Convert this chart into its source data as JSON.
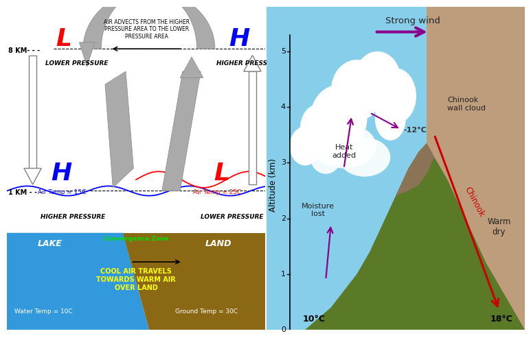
{
  "left_panel": {
    "bg_color": "#ffffff",
    "lake_color": "#3399dd",
    "land_color": "#8B6914",
    "lake_label": "LAKE",
    "land_label": "LAND",
    "convergence_label": "Convergence Zone",
    "water_temp": "Water Temp = 10C",
    "ground_temp": "Ground Temp = 30C",
    "cool_air_text": "COOL AIR TRAVELS\nTOWARDS WARM AIR\nOVER LAND",
    "L_left_label": "L",
    "L_left_sub": "LOWER PRESSURE",
    "H_right_label": "H",
    "H_right_sub": "HIGHER PRESSURE",
    "H_left_label": "H",
    "H_left_sub": "HIGHER PRESSURE",
    "H_left_temp": "Air Temp = 15C",
    "L_right_label": "L",
    "L_right_sub": "LOWER PRESSURE",
    "L_right_temp": "Air Temp = 25C",
    "km8_label": "8 KM- - -",
    "km1_label": "1 KM - - -",
    "advect_text": "AIR ADVECTS FROM THE HIGHER\nPRESSURE AREA TO THE LOWER\nPRESSURE AREA"
  },
  "right_panel": {
    "title": "Strong wind",
    "ylabel": "Altitude (km)",
    "yticks": [
      0,
      1,
      2,
      3,
      4,
      5
    ],
    "temp_bottom_left": "10°C",
    "temp_bottom_right": "18°C",
    "temp_top": "-12°C",
    "label_chinook_cloud": "Chinook\nwall cloud",
    "label_heat_added": "Heat\nadded",
    "label_moisture_lost": "Moisture\nlost",
    "label_chinook": "Chinook",
    "label_warm_dry": "Warm\ndry",
    "wind_arrow_color": "#8B008B",
    "chinook_arrow_color": "#cc0000",
    "heat_arrow_color": "#8B008B",
    "sky_color": "#87CEEB",
    "warm_color": "#DEB887"
  }
}
